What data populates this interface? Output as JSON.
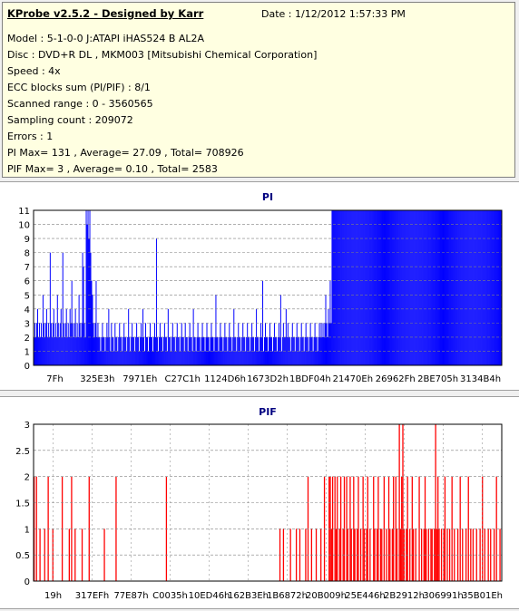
{
  "header": {
    "title": "KProbe v2.5.2 - Designed by Karr",
    "date": "Date : 1/12/2012 1:57:33 PM"
  },
  "info_lines": [
    "Model : 5-1-0-0 J:ATAPI   iHAS524   B       AL2A",
    "Disc : DVD+R DL , MKM003 [Mitsubishi Chemical Corporation]",
    "Speed : 4x",
    "ECC blocks sum (PI/PIF) : 8/1",
    "Scanned range : 0 - 3560565",
    "Sampling count : 209072",
    "Errors : 1",
    "PI Max= 131 , Average= 27.09 , Total= 708926",
    "PIF Max= 3 , Average= 0.10 , Total= 2583"
  ],
  "colors": {
    "pi": "#0000ff",
    "pif": "#ff0000",
    "title": "#000080",
    "grid": "#808080"
  },
  "chart_data": [
    {
      "type": "bar",
      "title": "PI",
      "ylim": [
        0,
        11
      ],
      "yticks": [
        "0",
        "1",
        "2",
        "3",
        "4",
        "5",
        "6",
        "7",
        "8",
        "9",
        "10",
        "11"
      ],
      "xticks": [
        "7Fh",
        "325E3h",
        "7971Eh",
        "C27C1h",
        "1124D6h",
        "1673D2h",
        "1BDF04h",
        "21470Eh",
        "26962Fh",
        "2BE705h",
        "3134B4h"
      ],
      "grid": true,
      "series": [
        {
          "values": [
            2,
            3,
            2,
            3,
            4,
            2,
            3,
            2,
            3,
            2,
            5,
            3,
            2,
            3,
            4,
            2,
            3,
            2,
            8,
            3,
            2,
            3,
            4,
            2,
            3,
            2,
            5,
            3,
            2,
            3,
            4,
            2,
            8,
            3,
            2,
            3,
            4,
            2,
            3,
            2,
            4,
            3,
            6,
            3,
            2,
            3,
            4,
            2,
            3,
            2,
            5,
            3,
            2,
            3,
            8,
            7,
            3,
            2,
            11,
            10,
            11,
            9,
            11,
            8,
            6,
            5,
            3,
            2,
            3,
            6,
            2,
            3,
            2,
            2,
            1,
            2,
            3,
            2,
            2,
            1,
            2,
            3,
            2,
            4,
            2,
            1,
            3,
            2,
            2,
            1,
            3,
            2,
            2,
            1,
            2,
            3,
            2,
            2,
            1,
            2,
            3,
            2,
            2,
            1,
            2,
            4,
            2,
            1,
            2,
            3,
            2,
            2,
            1,
            2,
            3,
            2,
            2,
            1,
            2,
            3,
            2,
            4,
            2,
            1,
            3,
            2,
            2,
            1,
            2,
            3,
            2,
            2,
            1,
            2,
            3,
            2,
            9,
            2,
            1,
            2,
            3,
            2,
            2,
            1,
            2,
            3,
            2,
            2,
            1,
            4,
            2,
            2,
            1,
            2,
            3,
            2,
            2,
            1,
            2,
            3,
            2,
            2,
            1,
            2,
            3,
            2,
            2,
            1,
            3,
            2,
            2,
            1,
            2,
            3,
            2,
            2,
            1,
            4,
            2,
            2,
            1,
            2,
            3,
            2,
            2,
            1,
            2,
            3,
            2,
            2,
            1,
            2,
            3,
            2,
            2,
            1,
            2,
            3,
            2,
            2,
            1,
            2,
            5,
            2,
            2,
            1,
            2,
            3,
            2,
            2,
            1,
            2,
            3,
            2,
            2,
            1,
            2,
            3,
            2,
            2,
            1,
            2,
            4,
            2,
            2,
            1,
            2,
            3,
            2,
            2,
            1,
            2,
            3,
            2,
            2,
            1,
            2,
            3,
            2,
            2,
            1,
            2,
            3,
            2,
            2,
            1,
            2,
            4,
            2,
            2,
            1,
            2,
            3,
            2,
            6,
            1,
            2,
            3,
            2,
            2,
            1,
            2,
            3,
            2,
            2,
            1,
            2,
            3,
            2,
            2,
            1,
            2,
            3,
            2,
            5,
            1,
            2,
            3,
            2,
            2,
            4,
            2,
            3,
            2,
            2,
            1,
            2,
            3,
            2,
            2,
            1,
            2,
            3,
            2,
            2,
            1,
            2,
            3,
            2,
            2,
            1,
            2,
            3,
            2,
            2,
            1,
            2,
            3,
            2,
            2,
            1,
            2,
            3,
            2,
            2,
            1,
            2,
            3,
            2,
            3,
            2,
            3,
            2,
            3,
            5,
            3,
            2,
            4,
            3,
            6,
            3,
            11,
            11,
            11,
            11,
            11,
            11,
            11,
            11,
            11,
            11,
            11,
            11,
            11,
            11,
            11,
            11,
            11,
            11,
            11,
            11,
            11,
            11,
            11,
            11,
            11,
            11,
            11,
            11,
            11,
            11,
            11,
            11,
            11,
            11,
            11,
            11,
            11,
            11,
            11,
            11,
            11,
            11,
            11,
            11,
            11,
            11,
            11,
            11,
            11,
            11,
            11,
            11,
            11,
            11,
            11,
            11,
            11,
            11,
            11,
            11,
            11,
            11,
            11,
            11,
            11,
            11,
            11,
            11,
            11,
            11,
            11,
            11,
            11,
            11,
            11,
            11,
            11,
            11,
            11,
            11,
            11,
            11,
            11,
            11,
            11,
            11,
            11,
            11,
            11,
            11,
            11,
            11,
            11,
            11,
            11,
            11,
            11,
            11,
            11,
            11,
            11,
            11,
            11,
            11,
            11,
            11,
            11,
            11,
            11,
            11,
            11,
            11,
            11,
            11,
            11,
            11,
            11,
            11,
            11,
            11,
            11,
            11,
            11,
            11,
            11,
            11,
            11,
            11,
            11,
            11,
            11,
            11,
            11,
            11,
            11,
            11,
            11,
            11,
            11,
            11,
            11,
            11,
            11,
            11,
            11,
            11,
            11,
            11,
            11,
            11,
            11,
            11,
            11,
            11,
            11,
            11,
            11,
            11,
            11,
            11,
            11,
            11,
            11,
            11,
            11,
            11,
            11,
            11,
            11,
            11,
            11,
            11,
            11,
            11,
            11,
            11,
            11,
            11,
            11,
            11,
            11,
            11,
            11,
            11,
            11,
            11,
            11,
            11,
            11
          ]
        }
      ]
    },
    {
      "type": "bar",
      "title": "PIF",
      "ylim": [
        0,
        3
      ],
      "yticks": [
        "0",
        "0.5",
        "1",
        "1.5",
        "2",
        "2.5",
        "3"
      ],
      "xticks": [
        "19h",
        "317EFh",
        "77E87h",
        "C0035h",
        "10ED46h",
        "162B3Eh",
        "1B6872h",
        "20B009h",
        "25E446h",
        "2B2912h",
        "306991h",
        "35B01Eh"
      ],
      "grid": true,
      "series": [
        {
          "values": [
            2,
            0,
            2,
            0,
            0,
            1,
            0,
            0,
            0,
            1,
            0,
            0,
            2,
            0,
            0,
            0,
            1,
            0,
            0,
            0,
            0,
            0,
            0,
            0,
            2,
            0,
            0,
            0,
            0,
            0,
            1,
            0,
            2,
            0,
            0,
            1,
            0,
            0,
            0,
            0,
            0,
            1,
            0,
            0,
            0,
            0,
            0,
            2,
            0,
            0,
            0,
            0,
            0,
            0,
            0,
            0,
            0,
            0,
            0,
            0,
            1,
            0,
            0,
            0,
            0,
            0,
            0,
            0,
            0,
            0,
            2,
            0,
            0,
            0,
            0,
            0,
            0,
            0,
            0,
            0,
            0,
            0,
            0,
            0,
            0,
            0,
            0,
            0,
            0,
            0,
            0,
            0,
            0,
            0,
            0,
            0,
            0,
            0,
            0,
            0,
            0,
            0,
            0,
            0,
            0,
            0,
            0,
            0,
            0,
            0,
            0,
            0,
            0,
            2,
            0,
            0,
            0,
            0,
            0,
            0,
            0,
            0,
            0,
            0,
            0,
            0,
            0,
            0,
            0,
            0,
            0,
            0,
            0,
            0,
            0,
            0,
            0,
            0,
            0,
            0,
            0,
            0,
            0,
            0,
            0,
            0,
            0,
            0,
            0,
            0,
            0,
            0,
            0,
            0,
            0,
            0,
            0,
            0,
            0,
            0,
            0,
            0,
            0,
            0,
            0,
            0,
            0,
            0,
            0,
            0,
            0,
            0,
            0,
            0,
            0,
            0,
            0,
            0,
            0,
            0,
            0,
            0,
            0,
            0,
            0,
            0,
            0,
            0,
            0,
            0,
            0,
            0,
            0,
            0,
            0,
            0,
            0,
            0,
            0,
            0,
            0,
            0,
            0,
            0,
            0,
            0,
            0,
            0,
            0,
            0,
            1,
            0,
            0,
            1,
            0,
            0,
            0,
            0,
            0,
            1,
            0,
            0,
            0,
            0,
            1,
            0,
            0,
            1,
            0,
            0,
            0,
            0,
            1,
            0,
            2,
            0,
            0,
            1,
            0,
            0,
            0,
            1,
            0,
            0,
            0,
            1,
            0,
            0,
            2,
            0,
            0,
            0,
            2,
            2,
            1,
            2,
            0,
            2,
            1,
            2,
            0,
            1,
            2,
            0,
            1,
            2,
            0,
            2,
            1,
            0,
            2,
            1,
            0,
            2,
            1,
            0,
            1,
            2,
            0,
            1,
            0,
            2,
            1,
            0,
            1,
            2,
            0,
            1,
            0,
            0,
            2,
            1,
            0,
            1,
            2,
            0,
            1,
            1,
            0,
            2,
            0,
            1,
            0,
            2,
            1,
            0,
            1,
            2,
            0,
            2,
            1,
            0,
            3,
            1,
            2,
            3,
            1,
            0,
            1,
            2,
            0,
            1,
            0,
            2,
            1,
            0,
            1,
            0,
            0,
            2,
            0,
            1,
            0,
            1,
            2,
            1,
            0,
            1,
            0,
            1,
            1,
            0,
            1,
            3,
            1,
            2,
            1,
            0,
            1,
            0,
            1,
            2,
            0,
            1,
            0,
            1,
            0,
            2,
            0,
            1,
            0,
            0,
            1,
            0,
            2,
            0,
            1,
            0,
            0,
            1,
            0,
            2,
            0,
            1,
            0,
            1,
            0,
            0,
            1,
            0,
            0,
            1,
            0,
            2,
            0,
            1,
            0,
            0,
            1,
            0,
            1,
            0,
            0,
            1,
            0,
            2,
            0,
            0,
            1,
            0
          ]
        }
      ]
    }
  ]
}
